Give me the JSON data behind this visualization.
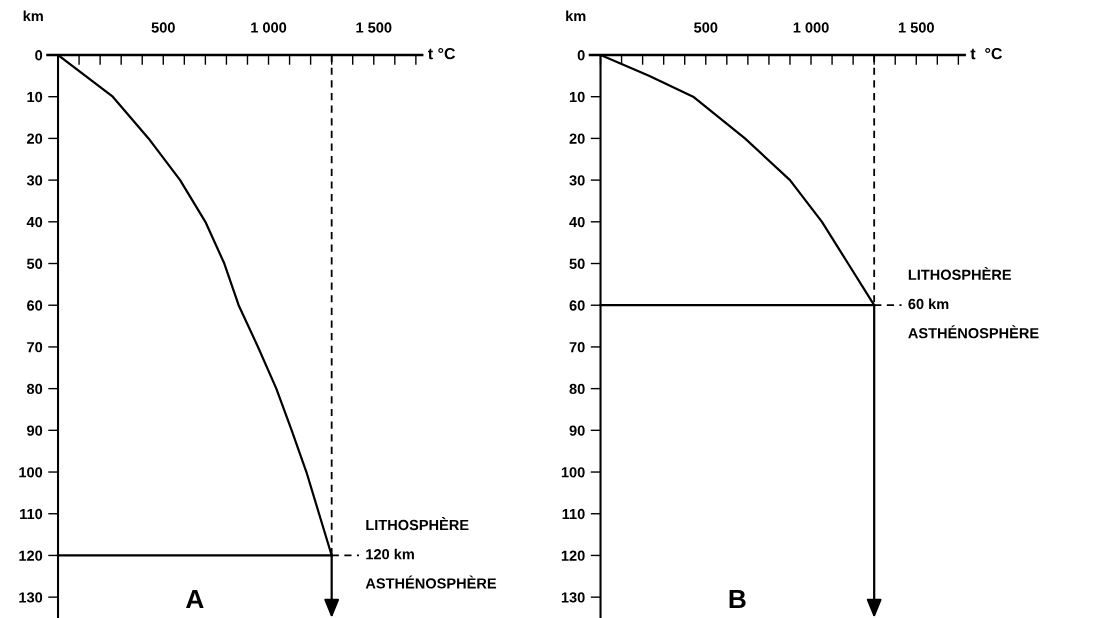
{
  "chart_data": [
    {
      "type": "line",
      "xlabel": "t °C",
      "ylabel": "km",
      "xlim": [
        -50,
        1730
      ],
      "ylim": [
        135,
        0
      ],
      "xticks": [
        {
          "value": 0,
          "label": null
        },
        {
          "value": 100,
          "label": null
        },
        {
          "value": 200,
          "label": null
        },
        {
          "value": 300,
          "label": null
        },
        {
          "value": 400,
          "label": null
        },
        {
          "value": 500,
          "label": "500"
        },
        {
          "value": 600,
          "label": null
        },
        {
          "value": 700,
          "label": null
        },
        {
          "value": 800,
          "label": null
        },
        {
          "value": 900,
          "label": null
        },
        {
          "value": 1000,
          "label": "1 000"
        },
        {
          "value": 1100,
          "label": null
        },
        {
          "value": 1200,
          "label": null
        },
        {
          "value": 1300,
          "label": null
        },
        {
          "value": 1400,
          "label": null
        },
        {
          "value": 1500,
          "label": "1 500"
        },
        {
          "value": 1600,
          "label": null
        },
        {
          "value": 1700,
          "label": null
        }
      ],
      "yticks": [
        0,
        10,
        20,
        30,
        40,
        50,
        60,
        70,
        80,
        90,
        100,
        110,
        120,
        130
      ],
      "series": [
        {
          "color": "#000000",
          "x": [
            0,
            260,
            430,
            580,
            700,
            790,
            858,
            950,
            1037,
            1110,
            1180,
            1240,
            1300
          ],
          "values": [
            0,
            10,
            20,
            30,
            40,
            50,
            60,
            70,
            80,
            90,
            100,
            110,
            120
          ]
        }
      ],
      "ref_lines": [
        {
          "axis": "x",
          "value": 1300,
          "line_style": "dashed",
          "color": "#000000"
        },
        {
          "axis": "y",
          "value": 120,
          "label": "120 km",
          "color": "#000000"
        }
      ],
      "annotations": [
        "LITHOSPHÈRE",
        "ASTHÉNOSPHÈRE",
        "A"
      ],
      "marker": "none",
      "line_style": "solid"
    },
    {
      "type": "line",
      "xlabel": "t  °C",
      "ylabel": "km",
      "xlim": [
        -50,
        1730
      ],
      "ylim": [
        135,
        0
      ],
      "xticks": [
        {
          "value": 0,
          "label": null
        },
        {
          "value": 100,
          "label": null
        },
        {
          "value": 200,
          "label": null
        },
        {
          "value": 300,
          "label": null
        },
        {
          "value": 400,
          "label": null
        },
        {
          "value": 500,
          "label": "500"
        },
        {
          "value": 600,
          "label": null
        },
        {
          "value": 700,
          "label": null
        },
        {
          "value": 800,
          "label": null
        },
        {
          "value": 900,
          "label": null
        },
        {
          "value": 1000,
          "label": "1 000"
        },
        {
          "value": 1100,
          "label": null
        },
        {
          "value": 1200,
          "label": null
        },
        {
          "value": 1300,
          "label": null
        },
        {
          "value": 1400,
          "label": null
        },
        {
          "value": 1500,
          "label": "1 500"
        },
        {
          "value": 1600,
          "label": null
        },
        {
          "value": 1700,
          "label": null
        }
      ],
      "yticks": [
        0,
        10,
        20,
        30,
        40,
        50,
        60,
        70,
        80,
        90,
        100,
        110,
        120,
        130
      ],
      "series": [
        {
          "color": "#000000",
          "x": [
            0,
            230,
            440,
            686,
            900,
            1052,
            1176,
            1300
          ],
          "values": [
            0,
            5,
            10,
            20,
            30,
            40,
            50,
            60
          ]
        }
      ],
      "ref_lines": [
        {
          "axis": "x",
          "value": 1300,
          "line_style": "dashed",
          "color": "#000000"
        },
        {
          "axis": "y",
          "value": 60,
          "label": "60 km",
          "color": "#000000"
        }
      ],
      "annotations": [
        "LITHOSPHÈRE",
        "ASTHÉNOSPHÈRE",
        "B"
      ],
      "marker": "none",
      "line_style": "solid"
    }
  ]
}
